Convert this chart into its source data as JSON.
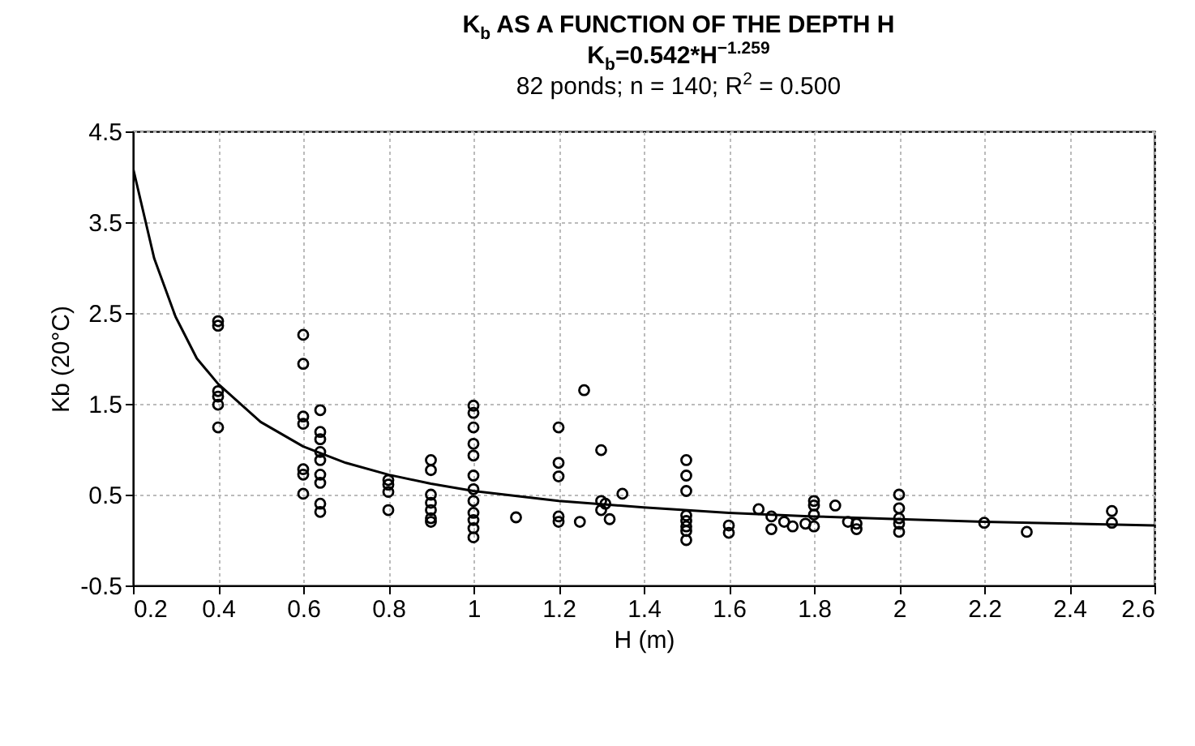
{
  "chart_data": {
    "type": "scatter",
    "title": "K$_{b}$ AS A FUNCTION OF THE DEPTH H",
    "subtitle": "K$_{b}$=0.542*H$^{−1.259}$",
    "annotations": [
      "82 ponds; n = 140; R$^{2}$ = 0.500"
    ],
    "xlabel": "H (m)",
    "ylabel": "Kb (20°C)",
    "xlim": [
      0.2,
      2.6
    ],
    "xticks": [
      0.2,
      0.4,
      0.6,
      0.8,
      1.0,
      1.2,
      1.4,
      1.6,
      1.8,
      2.0,
      2.2,
      2.4,
      2.6
    ],
    "ylim": [
      -0.5,
      4.5
    ],
    "yticks": [
      -0.5,
      0.5,
      1.5,
      2.5,
      3.5,
      4.5
    ],
    "grid": true,
    "marker": "circle",
    "series": [
      {
        "color": "#000000",
        "x": [
          0.4,
          0.4,
          0.4,
          0.4,
          0.4,
          0.4,
          0.6,
          0.6,
          0.6,
          0.6,
          0.6,
          0.6,
          0.6,
          0.64,
          0.64,
          0.64,
          0.64,
          0.64,
          0.64,
          0.64,
          0.64,
          0.64,
          0.8,
          0.8,
          0.8,
          0.8,
          0.9,
          0.9,
          0.9,
          0.9,
          0.9,
          0.9,
          0.9,
          1.0,
          1.0,
          1.0,
          1.0,
          1.0,
          1.0,
          1.0,
          1.0,
          1.0,
          1.0,
          1.0,
          1.0,
          1.1,
          1.2,
          1.2,
          1.2,
          1.2,
          1.2,
          1.25,
          1.26,
          1.3,
          1.3,
          1.3,
          1.32,
          1.31,
          1.35,
          1.5,
          1.5,
          1.5,
          1.5,
          1.5,
          1.5,
          1.5,
          1.5,
          1.6,
          1.6,
          1.67,
          1.7,
          1.7,
          1.73,
          1.75,
          1.78,
          1.8,
          1.8,
          1.8,
          1.8,
          1.85,
          1.88,
          1.9,
          1.9,
          2.0,
          2.0,
          2.0,
          2.0,
          2.0,
          2.2,
          2.3,
          2.5,
          2.5
        ],
        "values": [
          2.41,
          2.36,
          1.64,
          1.58,
          1.49,
          1.24,
          2.26,
          1.94,
          1.36,
          1.28,
          0.78,
          0.72,
          0.51,
          1.43,
          1.19,
          1.11,
          0.97,
          0.88,
          0.72,
          0.63,
          0.4,
          0.31,
          0.66,
          0.61,
          0.53,
          0.33,
          0.88,
          0.77,
          0.5,
          0.41,
          0.33,
          0.24,
          0.2,
          1.48,
          1.4,
          1.24,
          1.06,
          0.93,
          0.71,
          0.56,
          0.43,
          0.3,
          0.22,
          0.13,
          0.03,
          0.25,
          1.24,
          0.85,
          0.7,
          0.26,
          0.2,
          0.2,
          1.65,
          0.99,
          0.43,
          0.33,
          0.23,
          0.4,
          0.51,
          0.88,
          0.71,
          0.54,
          0.27,
          0.21,
          0.15,
          0.1,
          0.0,
          0.16,
          0.08,
          0.34,
          0.26,
          0.12,
          0.2,
          0.15,
          0.18,
          0.43,
          0.38,
          0.28,
          0.15,
          0.38,
          0.2,
          0.18,
          0.12,
          0.5,
          0.35,
          0.24,
          0.18,
          0.09,
          0.19,
          0.09,
          0.32,
          0.19
        ]
      },
      {
        "type": "line",
        "color": "#000000",
        "marker": "none",
        "x": [
          0.2,
          0.25,
          0.3,
          0.35,
          0.4,
          0.5,
          0.6,
          0.7,
          0.8,
          0.9,
          1.0,
          1.2,
          1.4,
          1.6,
          1.8,
          2.0,
          2.2,
          2.4,
          2.6
        ],
        "values": [
          4.1,
          3.1,
          2.46,
          2.0,
          1.72,
          1.3,
          1.03,
          0.85,
          0.72,
          0.62,
          0.54,
          0.43,
          0.36,
          0.3,
          0.26,
          0.23,
          0.2,
          0.18,
          0.16
        ]
      }
    ]
  }
}
